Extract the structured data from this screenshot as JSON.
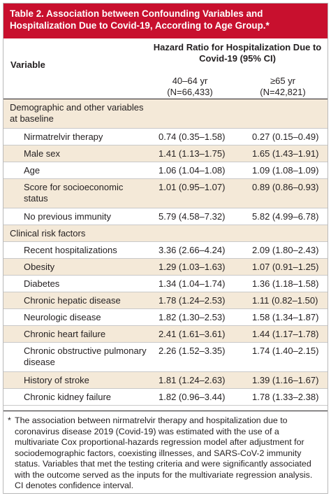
{
  "title": {
    "label": "Table 2.",
    "text": "Association between Confounding Variables and Hospitalization Due to Covid-19, According to Age Group.*"
  },
  "header": {
    "variable": "Variable",
    "hazard_title": "Hazard Ratio for Hospitalization Due to Covid-19 (95% CI)",
    "col_a_line1": "40–64 yr",
    "col_a_line2": "(N=66,433)",
    "col_b_line1": "≥65 yr",
    "col_b_line2": "(N=42,821)"
  },
  "rows": [
    {
      "name": "Demographic and other variables at baseline",
      "a": "",
      "b": "",
      "section": true
    },
    {
      "name": "Nirmatrelvir therapy",
      "a": "0.74 (0.35–1.58)",
      "b": "0.27 (0.15–0.49)"
    },
    {
      "name": "Male sex",
      "a": "1.41 (1.13–1.75)",
      "b": "1.65 (1.43–1.91)"
    },
    {
      "name": "Age",
      "a": "1.06 (1.04–1.08)",
      "b": "1.09 (1.08–1.09)"
    },
    {
      "name": "Score for socioeconomic status",
      "a": "1.01 (0.95–1.07)",
      "b": "0.89 (0.86–0.93)"
    },
    {
      "name": "No previous immunity",
      "a": "5.79 (4.58–7.32)",
      "b": "5.82 (4.99–6.78)"
    },
    {
      "name": "Clinical risk factors",
      "a": "",
      "b": "",
      "section": true
    },
    {
      "name": "Recent hospitalizations",
      "a": "3.36 (2.66–4.24)",
      "b": "2.09 (1.80–2.43)"
    },
    {
      "name": "Obesity",
      "a": "1.29 (1.03–1.63)",
      "b": "1.07 (0.91–1.25)"
    },
    {
      "name": "Diabetes",
      "a": "1.34 (1.04–1.74)",
      "b": "1.36 (1.18–1.58)"
    },
    {
      "name": "Chronic hepatic disease",
      "a": "1.78 (1.24–2.53)",
      "b": "1.11 (0.82–1.50)"
    },
    {
      "name": "Neurologic disease",
      "a": "1.82 (1.30–2.53)",
      "b": "1.58 (1.34–1.87)"
    },
    {
      "name": "Chronic heart failure",
      "a": "2.41 (1.61–3.61)",
      "b": "1.44 (1.17–1.78)"
    },
    {
      "name": "Chronic obstructive pulmonary disease",
      "a": "2.26 (1.52–3.35)",
      "b": "1.74 (1.40–2.15)"
    },
    {
      "name": "History of stroke",
      "a": "1.81 (1.24–2.63)",
      "b": "1.39 (1.16–1.67)"
    },
    {
      "name": "Chronic kidney failure",
      "a": "1.82 (0.96–3.44)",
      "b": "1.78 (1.33–2.38)"
    }
  ],
  "footnote": {
    "marker": "*",
    "text": "The association between nirmatrelvir therapy and hospitalization due to coronavirus disease 2019 (Covid-19) was estimated with the use of a multivariate Cox proportional-hazards regression model after adjustment for sociodemographic factors, coexisting illnesses, and SARS-CoV-2 immunity status. Variables that met the testing criteria and were significantly associated with the outcome served as the inputs for the multivariate regression analysis. CI denotes confidence interval."
  },
  "colors": {
    "title_bar": "#c8102e",
    "shaded_row": "#f4e9d8"
  }
}
